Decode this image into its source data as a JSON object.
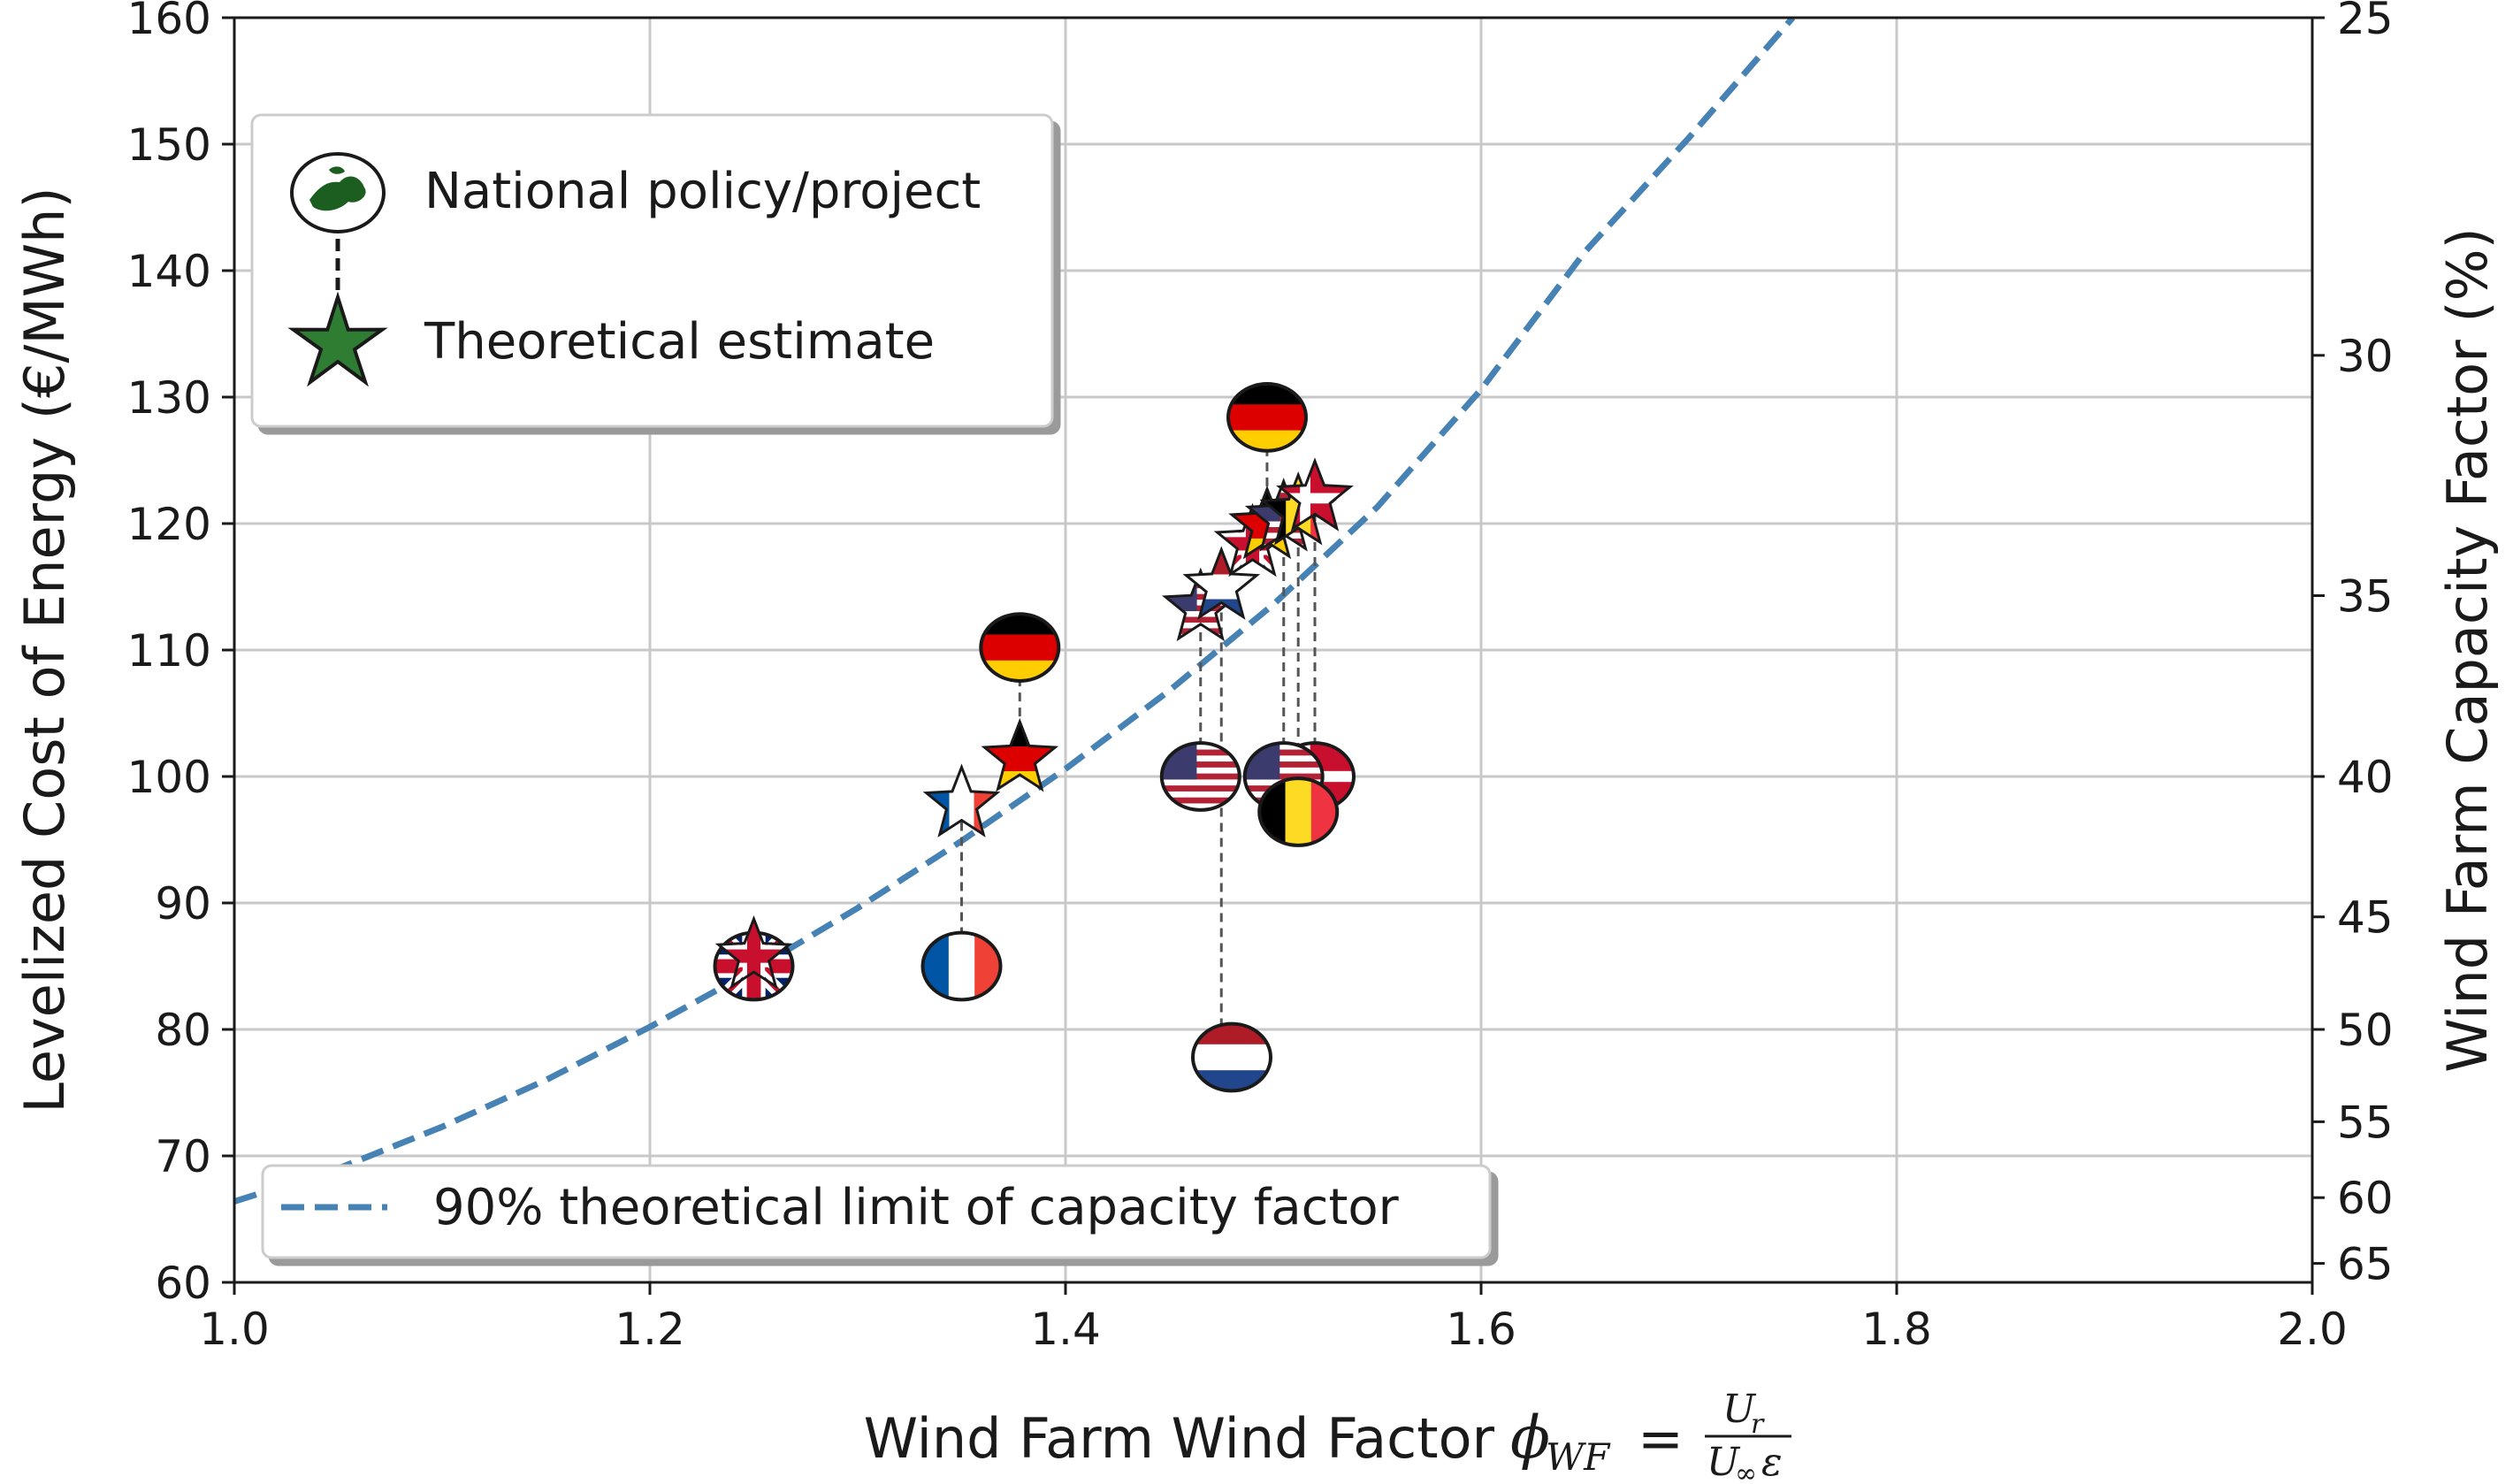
{
  "chart_data": {
    "type": "scatter",
    "xlabel": "Wind Farm Wind Factor",
    "xlabel_symbol": "ϕ",
    "xlabel_subscript": "WF",
    "xlabel_equals": "=",
    "xlabel_fraction_numerator": "U",
    "xlabel_fraction_numerator_sub": "r",
    "xlabel_fraction_denominator": "U",
    "xlabel_fraction_denominator_sub": "∞",
    "xlabel_fraction_denominator_tail": "ε",
    "ylabel": "Levelized Cost of Energy (€/MWh)",
    "y2label": "Wind Farm Capacity Factor (%)",
    "xlim": [
      1.0,
      2.0
    ],
    "ylim": [
      60,
      160
    ],
    "grid": true,
    "x_ticks": [
      {
        "value": 1.0,
        "label": "1.0"
      },
      {
        "value": 1.2,
        "label": "1.2"
      },
      {
        "value": 1.4,
        "label": "1.4"
      },
      {
        "value": 1.6,
        "label": "1.6"
      },
      {
        "value": 1.8,
        "label": "1.8"
      },
      {
        "value": 2.0,
        "label": "2.0"
      }
    ],
    "y_ticks": [
      {
        "value": 60,
        "label": "60"
      },
      {
        "value": 70,
        "label": "70"
      },
      {
        "value": 80,
        "label": "80"
      },
      {
        "value": 90,
        "label": "90"
      },
      {
        "value": 100,
        "label": "100"
      },
      {
        "value": 110,
        "label": "110"
      },
      {
        "value": 120,
        "label": "120"
      },
      {
        "value": 130,
        "label": "130"
      },
      {
        "value": 140,
        "label": "140"
      },
      {
        "value": 150,
        "label": "150"
      },
      {
        "value": 160,
        "label": "160"
      }
    ],
    "y2_ticks": [
      {
        "value": 25,
        "y_equiv": 160.0,
        "label": "25"
      },
      {
        "value": 30,
        "y_equiv": 133.3,
        "label": "30"
      },
      {
        "value": 35,
        "y_equiv": 114.3,
        "label": "35"
      },
      {
        "value": 40,
        "y_equiv": 100.0,
        "label": "40"
      },
      {
        "value": 45,
        "y_equiv": 88.9,
        "label": "45"
      },
      {
        "value": 50,
        "y_equiv": 80.0,
        "label": "50"
      },
      {
        "value": 55,
        "y_equiv": 72.7,
        "label": "55"
      },
      {
        "value": 60,
        "y_equiv": 66.7,
        "label": "60"
      },
      {
        "value": 65,
        "y_equiv": 61.5,
        "label": "65"
      }
    ],
    "limit_curve": {
      "name": "90% theoretical limit of capacity factor",
      "style": "dashed",
      "color": "#4682b4",
      "x": [
        1.0,
        1.05,
        1.1,
        1.15,
        1.2,
        1.25,
        1.3,
        1.35,
        1.4,
        1.45,
        1.5,
        1.55,
        1.6,
        1.65,
        1.7,
        1.75
      ],
      "y": [
        66.4,
        69.0,
        72.3,
        76.0,
        80.2,
        84.7,
        89.6,
        94.9,
        100.6,
        106.8,
        113.6,
        121.3,
        130.6,
        141.5,
        150.5,
        160.0
      ]
    },
    "legend": {
      "placement": "upper-left",
      "entries": [
        {
          "label": "National policy/project",
          "marker": "globe"
        },
        {
          "label": "Theoretical estimate",
          "marker": "star"
        }
      ]
    },
    "legend2": {
      "placement": "lower-left",
      "entries": [
        {
          "label": "90% theoretical limit of capacity factor",
          "marker": "dashed-line"
        }
      ]
    },
    "policy_points": [
      {
        "country": "Germany",
        "flag": "germany",
        "x": 1.497,
        "y": 128.4
      },
      {
        "country": "Germany",
        "flag": "germany",
        "x": 1.378,
        "y": 110.2
      },
      {
        "country": "USA",
        "flag": "usa",
        "x": 1.465,
        "y": 100.0
      },
      {
        "country": "Denmark",
        "flag": "denmark",
        "x": 1.52,
        "y": 100.0
      },
      {
        "country": "USA",
        "flag": "usa",
        "x": 1.505,
        "y": 100.0
      },
      {
        "country": "Belgium",
        "flag": "belgium",
        "x": 1.512,
        "y": 97.2
      },
      {
        "country": "France",
        "flag": "france",
        "x": 1.35,
        "y": 85.0
      },
      {
        "country": "UK",
        "flag": "uk",
        "x": 1.25,
        "y": 85.0
      },
      {
        "country": "Netherlands",
        "flag": "netherlands",
        "x": 1.48,
        "y": 77.8
      }
    ],
    "estimate_points": [
      {
        "country": "UK",
        "flag": "uk",
        "x": 1.25,
        "y": 85.8
      },
      {
        "country": "France",
        "flag": "france",
        "x": 1.35,
        "y": 97.8
      },
      {
        "country": "Germany",
        "flag": "germany",
        "x": 1.378,
        "y": 101.4
      },
      {
        "country": "USA",
        "flag": "usa",
        "x": 1.465,
        "y": 113.3
      },
      {
        "country": "Netherlands",
        "flag": "netherlands",
        "x": 1.475,
        "y": 115.0
      },
      {
        "country": "UK",
        "flag": "uk",
        "x": 1.49,
        "y": 118.4
      },
      {
        "country": "Germany",
        "flag": "germany",
        "x": 1.497,
        "y": 119.8
      },
      {
        "country": "USA",
        "flag": "usa",
        "x": 1.505,
        "y": 120.4
      },
      {
        "country": "Belgium",
        "flag": "belgium",
        "x": 1.512,
        "y": 120.9
      },
      {
        "country": "Denmark",
        "flag": "denmark",
        "x": 1.52,
        "y": 122.0
      }
    ],
    "connectors": [
      {
        "x": 1.497,
        "y_from": 128.4,
        "y_to": 119.8
      },
      {
        "x": 1.378,
        "y_from": 110.2,
        "y_to": 101.4
      },
      {
        "x": 1.35,
        "y_from": 85.0,
        "y_to": 97.8
      },
      {
        "x": 1.465,
        "y_from": 100.0,
        "y_to": 113.3
      },
      {
        "x": 1.475,
        "y_from": 77.8,
        "y_to": 115.0
      },
      {
        "x": 1.505,
        "y_from": 100.0,
        "y_to": 120.4
      },
      {
        "x": 1.512,
        "y_from": 97.2,
        "y_to": 120.9
      },
      {
        "x": 1.52,
        "y_from": 100.0,
        "y_to": 122.0
      }
    ]
  },
  "colors": {
    "curve": "#4682b4",
    "grid": "#c8c8c8",
    "axis": "#1a1a1a",
    "globe_green": "#1b5e20",
    "star_green": "#2e7d32"
  }
}
